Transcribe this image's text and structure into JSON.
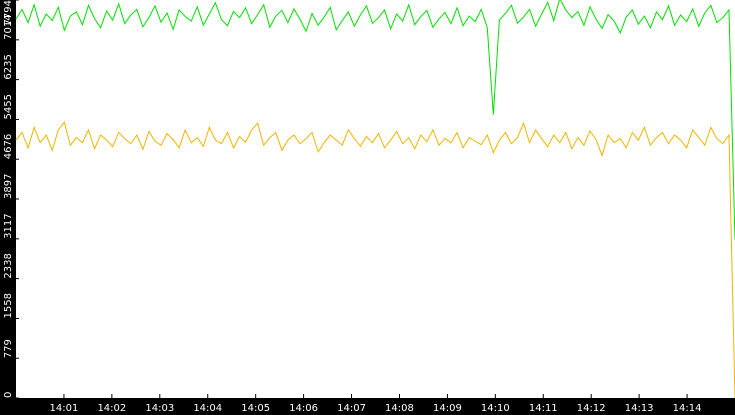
{
  "chart_data": {
    "type": "line",
    "xlim": [
      0,
      15
    ],
    "xticks": [
      {
        "value": 1,
        "label": "14:01"
      },
      {
        "value": 2,
        "label": "14:02"
      },
      {
        "value": 3,
        "label": "14:03"
      },
      {
        "value": 4,
        "label": "14:04"
      },
      {
        "value": 5,
        "label": "14:05"
      },
      {
        "value": 6,
        "label": "14:06"
      },
      {
        "value": 7,
        "label": "14:07"
      },
      {
        "value": 8,
        "label": "14:08"
      },
      {
        "value": 9,
        "label": "14:09"
      },
      {
        "value": 10,
        "label": "14:10"
      },
      {
        "value": 11,
        "label": "14:11"
      },
      {
        "value": 12,
        "label": "14:12"
      },
      {
        "value": 13,
        "label": "14:13"
      },
      {
        "value": 14,
        "label": "14:14"
      }
    ],
    "ylim": [
      0,
      7794
    ],
    "yticks": [
      0,
      779,
      1558,
      2338,
      3117,
      3897,
      4676,
      5455,
      6235,
      7014,
      7794
    ],
    "series": [
      {
        "color": "#00e000",
        "values": [
          7420,
          7610,
          7350,
          7700,
          7280,
          7520,
          7390,
          7650,
          7200,
          7480,
          7560,
          7310,
          7690,
          7430,
          7250,
          7580,
          7400,
          7720,
          7330,
          7500,
          7610,
          7270,
          7450,
          7680,
          7360,
          7540,
          7220,
          7600,
          7470,
          7380,
          7660,
          7300,
          7520,
          7740,
          7410,
          7290,
          7570,
          7450,
          7640,
          7330,
          7510,
          7700,
          7260,
          7480,
          7590,
          7350,
          7620,
          7420,
          7180,
          7530,
          7300,
          7460,
          7650,
          7210,
          7390,
          7560,
          7280,
          7500,
          7680,
          7340,
          7450,
          7600,
          7230,
          7520,
          7380,
          7700,
          7310,
          7470,
          7590,
          7260,
          7420,
          7550,
          7330,
          7640,
          7290,
          7480,
          7370,
          7610,
          7250,
          5550,
          7400,
          7530,
          7690,
          7340,
          7460,
          7610,
          7280,
          7520,
          7750,
          7390,
          7820,
          7600,
          7450,
          7570,
          7300,
          7660,
          7420,
          7240,
          7510,
          7380,
          7150,
          7460,
          7600,
          7320,
          7480,
          7250,
          7560,
          7410,
          7680,
          7300,
          7500,
          7370,
          7620,
          7280,
          7540,
          7690,
          7350,
          7450,
          7600,
          3100
        ]
      },
      {
        "color": "#f0b400",
        "values": [
          5050,
          5200,
          4900,
          5300,
          5000,
          5150,
          4850,
          5250,
          5400,
          4950,
          5100,
          5000,
          5250,
          4880,
          5150,
          5050,
          4920,
          5200,
          5080,
          4980,
          5150,
          4870,
          5220,
          5030,
          4950,
          5180,
          5060,
          4900,
          5250,
          5000,
          5100,
          4930,
          5300,
          5050,
          4980,
          5200,
          4900,
          5120,
          5010,
          5250,
          5380,
          4950,
          5100,
          5200,
          4850,
          5050,
          5150,
          4980,
          5080,
          5200,
          4820,
          5000,
          5150,
          5050,
          4950,
          5250,
          5080,
          4930,
          5120,
          5000,
          5180,
          4900,
          5050,
          5220,
          4980,
          5100,
          4880,
          5150,
          5020,
          5250,
          4950,
          5080,
          5000,
          5200,
          4900,
          5100,
          5030,
          4960,
          5150,
          4800,
          5050,
          5200,
          4980,
          5100,
          5380,
          5000,
          5250,
          5080,
          4920,
          5150,
          5000,
          5200,
          4880,
          5100,
          4950,
          5230,
          5060,
          4750,
          5150,
          5000,
          5080,
          4900,
          5200,
          5050,
          5300,
          4950,
          5100,
          5200,
          4980,
          5150,
          5050,
          4900,
          5250,
          5100,
          4950,
          5300,
          5080,
          4980,
          5150,
          0
        ]
      }
    ]
  }
}
